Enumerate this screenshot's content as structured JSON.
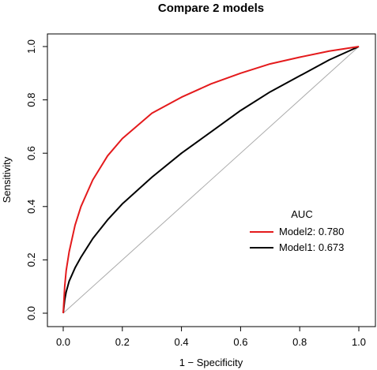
{
  "chart_data": {
    "type": "line",
    "title": "Compare 2 models",
    "xlabel": "1 − Specificity",
    "ylabel": "Sensitivity",
    "xlim": [
      0,
      1
    ],
    "ylim": [
      0,
      1
    ],
    "xticks": [
      "0.0",
      "0.2",
      "0.4",
      "0.6",
      "0.8",
      "1.0"
    ],
    "yticks": [
      "0.0",
      "0.2",
      "0.4",
      "0.6",
      "0.8",
      "1.0"
    ],
    "grid": false,
    "legend": {
      "title": "AUC",
      "placement": "right"
    },
    "series": [
      {
        "name": "Model2: 0.780",
        "color": "#e41a1c",
        "x": [
          0,
          0.005,
          0.01,
          0.02,
          0.04,
          0.06,
          0.08,
          0.1,
          0.15,
          0.2,
          0.3,
          0.4,
          0.5,
          0.6,
          0.7,
          0.8,
          0.9,
          1.0
        ],
        "y": [
          0,
          0.1,
          0.16,
          0.23,
          0.33,
          0.4,
          0.45,
          0.5,
          0.59,
          0.655,
          0.75,
          0.81,
          0.86,
          0.9,
          0.935,
          0.96,
          0.983,
          1.0
        ]
      },
      {
        "name": "Model1: 0.673",
        "color": "#000000",
        "x": [
          0,
          0.005,
          0.01,
          0.02,
          0.04,
          0.06,
          0.08,
          0.1,
          0.15,
          0.2,
          0.3,
          0.4,
          0.5,
          0.6,
          0.7,
          0.8,
          0.9,
          1.0
        ],
        "y": [
          0,
          0.05,
          0.08,
          0.12,
          0.17,
          0.21,
          0.245,
          0.28,
          0.35,
          0.41,
          0.51,
          0.6,
          0.68,
          0.76,
          0.83,
          0.89,
          0.95,
          1.0
        ]
      },
      {
        "name": "",
        "color": "#aaaaaa",
        "x": [
          0,
          1
        ],
        "y": [
          0,
          1
        ]
      }
    ]
  }
}
